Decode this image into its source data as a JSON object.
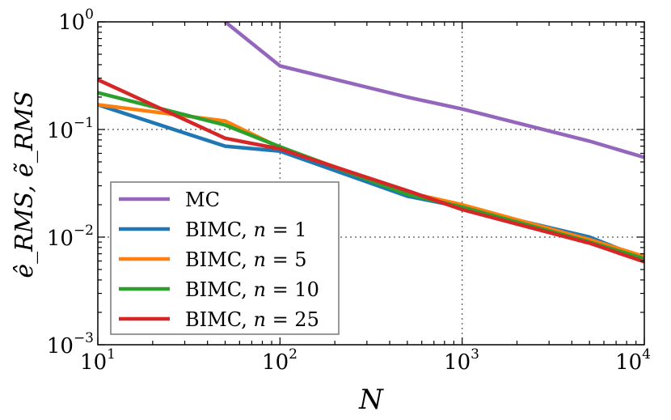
{
  "chart_data": {
    "type": "line",
    "xscale": "log",
    "yscale": "log",
    "xlim": [
      10,
      10000
    ],
    "ylim": [
      0.001,
      1
    ],
    "grid": true,
    "legend_position": "bottom-left",
    "xlabel": "N",
    "ylabel": "ê_RMS, ẽ_RMS",
    "x_ticks": [
      {
        "base": "10",
        "exp": "1",
        "value": 10
      },
      {
        "base": "10",
        "exp": "2",
        "value": 100
      },
      {
        "base": "10",
        "exp": "3",
        "value": 1000
      },
      {
        "base": "10",
        "exp": "4",
        "value": 10000
      }
    ],
    "y_ticks": [
      {
        "base": "10",
        "exp": "−3",
        "value": 0.001
      },
      {
        "base": "10",
        "exp": "−2",
        "value": 0.01
      },
      {
        "base": "10",
        "exp": "−1",
        "value": 0.1
      },
      {
        "base": "10",
        "exp": "0",
        "value": 1
      }
    ],
    "series": [
      {
        "name": "MC",
        "label_prefix": "MC",
        "label_var": "",
        "label_value": "",
        "color": "#9467bd",
        "x": [
          50,
          100,
          500,
          1000,
          5000,
          10000
        ],
        "y": [
          1.0,
          0.39,
          0.2,
          0.155,
          0.078,
          0.055
        ]
      },
      {
        "name": "BIMC, n = 1",
        "label_prefix": "BIMC, ",
        "label_var": "n",
        "label_value": " = 1",
        "color": "#1f77b4",
        "x": [
          10,
          50,
          100,
          500,
          1000,
          5000,
          10000
        ],
        "y": [
          0.17,
          0.07,
          0.063,
          0.024,
          0.019,
          0.01,
          0.0063
        ]
      },
      {
        "name": "BIMC, n = 5",
        "label_prefix": "BIMC, ",
        "label_var": "n",
        "label_value": " = 5",
        "color": "#ff7f0e",
        "x": [
          10,
          50,
          100,
          500,
          1000,
          5000,
          10000
        ],
        "y": [
          0.17,
          0.12,
          0.068,
          0.026,
          0.02,
          0.0095,
          0.0066
        ]
      },
      {
        "name": "BIMC, n = 10",
        "label_prefix": "BIMC, ",
        "label_var": "n",
        "label_value": " = 10",
        "color": "#2ca02c",
        "x": [
          10,
          50,
          100,
          500,
          1000,
          5000,
          10000
        ],
        "y": [
          0.22,
          0.11,
          0.069,
          0.025,
          0.019,
          0.009,
          0.0063
        ]
      },
      {
        "name": "BIMC, n = 25",
        "label_prefix": "BIMC, ",
        "label_var": "n",
        "label_value": " = 25",
        "color": "#d62728",
        "x": [
          10,
          50,
          100,
          500,
          1000,
          5000,
          10000
        ],
        "y": [
          0.29,
          0.083,
          0.066,
          0.027,
          0.018,
          0.0088,
          0.0059
        ]
      }
    ]
  }
}
